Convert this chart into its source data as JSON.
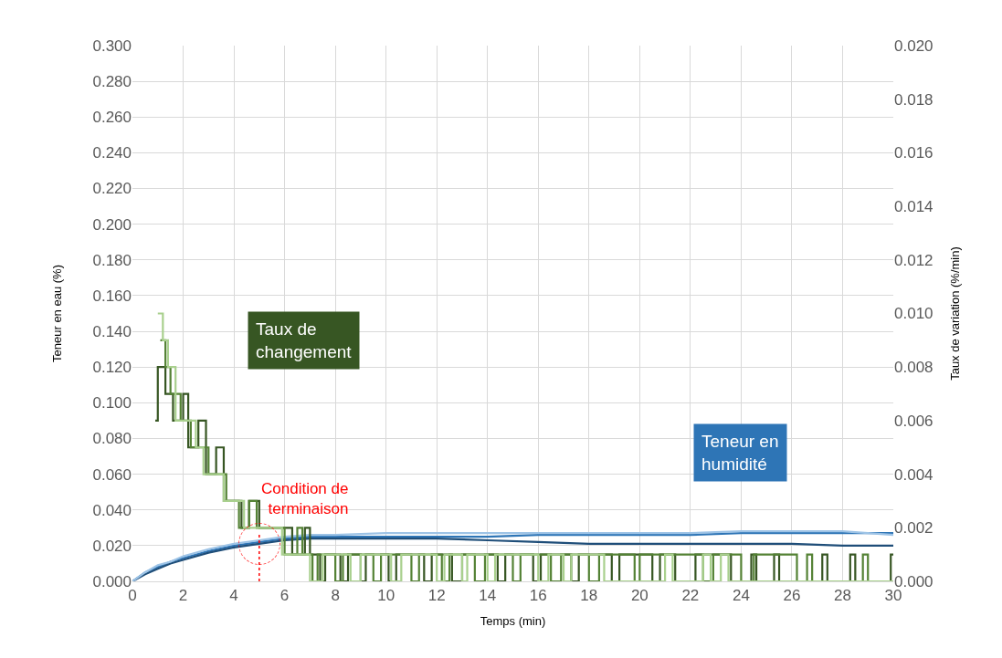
{
  "chart_data": {
    "type": "line",
    "xlabel": "Temps (min)",
    "ylabel": "Teneur en eau (%)",
    "y2label": "Taux de variation (%/min)",
    "xlim": [
      0,
      30
    ],
    "xticks": [
      0,
      2,
      4,
      6,
      8,
      10,
      12,
      14,
      16,
      18,
      20,
      22,
      24,
      26,
      28,
      30
    ],
    "ylim": [
      0,
      0.3
    ],
    "yticks": [
      {
        "value": 0,
        "label": "0.000"
      },
      {
        "value": 0.02,
        "label": "0.020"
      },
      {
        "value": 0.04,
        "label": "0.040"
      },
      {
        "value": 0.06,
        "label": "0.060"
      },
      {
        "value": 0.08,
        "label": "0.080"
      },
      {
        "value": 0.1,
        "label": "0.100"
      },
      {
        "value": 0.12,
        "label": "0.120"
      },
      {
        "value": 0.14,
        "label": "0.140"
      },
      {
        "value": 0.16,
        "label": "0.160"
      },
      {
        "value": 0.18,
        "label": "0.180"
      },
      {
        "value": 0.2,
        "label": "0.200"
      },
      {
        "value": 0.22,
        "label": "0.220"
      },
      {
        "value": 0.24,
        "label": "0.240"
      },
      {
        "value": 0.26,
        "label": "0.260"
      },
      {
        "value": 0.28,
        "label": "0.280"
      },
      {
        "value": 0.3,
        "label": "0.300"
      }
    ],
    "y2lim": [
      0,
      0.02
    ],
    "y2ticks": [
      {
        "value": 0,
        "label": "0.000"
      },
      {
        "value": 0.002,
        "label": "0.002"
      },
      {
        "value": 0.004,
        "label": "0.004"
      },
      {
        "value": 0.006,
        "label": "0.006"
      },
      {
        "value": 0.008,
        "label": "0.008"
      },
      {
        "value": 0.01,
        "label": "0.010"
      },
      {
        "value": 0.012,
        "label": "0.012"
      },
      {
        "value": 0.014,
        "label": "0.014"
      },
      {
        "value": 0.016,
        "label": "0.016"
      },
      {
        "value": 0.018,
        "label": "0.018"
      },
      {
        "value": 0.02,
        "label": "0.020"
      }
    ],
    "grid": true,
    "annotations": [
      "Taux de changement",
      "Teneur en humidité"
    ],
    "ref_lines": [
      {
        "axis": "x",
        "value": 5,
        "label": "Condition de terminaison",
        "color": "#ff0000",
        "line_style": "dotted"
      }
    ],
    "series": [
      {
        "type": "step",
        "axis": "y2",
        "color": "#375623",
        "x": [
          0.9,
          1.0,
          1.3,
          1.6,
          2.0,
          2.2,
          2.6,
          2.9,
          3.3,
          3.6,
          4.0,
          4.3,
          4.6,
          5.0,
          6.3,
          6.8,
          7.0,
          7.4,
          7.6,
          8.2,
          8.5,
          9.0,
          9.2,
          10.1,
          10.4,
          11.5,
          11.8,
          12.6,
          13.0,
          14.4,
          14.7,
          15.8,
          16.1,
          17.3,
          17.6,
          18.9,
          19.2,
          20.5,
          20.8,
          21.4,
          22.2,
          23.6,
          24.4,
          24.6,
          25.3,
          25.5,
          27.2,
          27.4,
          28.3,
          28.5,
          29.9,
          30
        ],
        "values": [
          0.006,
          0.008,
          0.007,
          0.006,
          0.007,
          0.005,
          0.006,
          0.004,
          0.005,
          0.003,
          0.003,
          0.002,
          0.003,
          0.002,
          0.001,
          0.002,
          0.001,
          0,
          0.001,
          0,
          0.001,
          0,
          0.001,
          0,
          0.001,
          0,
          0.001,
          0,
          0.001,
          0,
          0.001,
          0,
          0.001,
          0,
          0.001,
          0,
          0.001,
          0,
          0.001,
          0,
          0.001,
          0,
          0.001,
          0,
          0.001,
          0,
          0.001,
          0,
          0.001,
          0,
          0.001,
          0.001
        ]
      },
      {
        "type": "step",
        "axis": "y2",
        "color": "#548235",
        "x": [
          1.1,
          1.3,
          1.5,
          1.9,
          2.3,
          2.7,
          3.0,
          3.4,
          3.7,
          4.2,
          4.6,
          4.9,
          5.7,
          6.0,
          6.5,
          6.7,
          7.1,
          7.3,
          8.0,
          8.3,
          9.5,
          9.8,
          11.0,
          11.3,
          12.2,
          12.5,
          13.5,
          13.9,
          15.0,
          15.3,
          16.5,
          16.9,
          18.0,
          18.4,
          19.8,
          20.0,
          22.5,
          22.9,
          24.0,
          24.5,
          26.2,
          26.6,
          26.8,
          28.8,
          29.0
        ],
        "values": [
          0.009,
          0.008,
          0.007,
          0.006,
          0.005,
          0.005,
          0.004,
          0.004,
          0.003,
          0.002,
          0.003,
          0.002,
          0.002,
          0.001,
          0.002,
          0.001,
          0,
          0.001,
          0,
          0.001,
          0,
          0.001,
          0,
          0.001,
          0,
          0.001,
          0,
          0.001,
          0,
          0.001,
          0,
          0.001,
          0,
          0.001,
          0,
          0.001,
          0,
          0.001,
          0,
          0.001,
          0,
          0.001,
          0,
          0.001,
          0
        ]
      },
      {
        "type": "step",
        "axis": "y2",
        "color": "#a9d08e",
        "x": [
          1.0,
          1.2,
          1.4,
          1.7,
          2.1,
          2.5,
          2.8,
          3.2,
          3.6,
          4.0,
          4.4,
          5.2,
          5.9,
          6.8,
          7.0,
          7.5,
          8.6,
          9.0,
          10.2,
          10.6,
          12.0,
          12.3,
          13.0,
          13.2,
          14.0,
          14.3,
          16.0,
          16.4,
          17.0,
          17.3,
          18.6,
          21.0,
          21.3,
          22.5,
          22.8,
          23.2,
          23.5,
          30
        ],
        "values": [
          0.01,
          0.009,
          0.008,
          0.006,
          0.006,
          0.005,
          0.004,
          0.004,
          0.003,
          0.003,
          0.002,
          0.002,
          0.001,
          0.001,
          0,
          0.001,
          0,
          0.001,
          0,
          0.001,
          0,
          0.001,
          0,
          0.001,
          0,
          0.001,
          0,
          0.001,
          0,
          0.001,
          0,
          0.001,
          0,
          0.001,
          0,
          0.001,
          0,
          0
        ]
      },
      {
        "color": "#2e75b6",
        "x": [
          0,
          0.5,
          1,
          1.5,
          2,
          3,
          4,
          5,
          6,
          7,
          8,
          10,
          12,
          14,
          16,
          18,
          20,
          22,
          24,
          26,
          28,
          30
        ],
        "values": [
          0,
          0.005,
          0.008,
          0.011,
          0.013,
          0.017,
          0.02,
          0.022,
          0.024,
          0.025,
          0.025,
          0.025,
          0.025,
          0.025,
          0.026,
          0.026,
          0.026,
          0.026,
          0.027,
          0.027,
          0.027,
          0.027
        ]
      },
      {
        "color": "#1f4e79",
        "x": [
          0,
          0.5,
          1,
          1.5,
          2,
          3,
          4,
          5,
          6,
          7,
          8,
          10,
          12,
          14,
          16,
          18,
          20,
          22,
          24,
          26,
          28,
          30
        ],
        "values": [
          0,
          0.004,
          0.007,
          0.01,
          0.012,
          0.016,
          0.019,
          0.021,
          0.023,
          0.024,
          0.024,
          0.024,
          0.024,
          0.023,
          0.022,
          0.021,
          0.021,
          0.021,
          0.021,
          0.021,
          0.02,
          0.02
        ]
      },
      {
        "color": "#9dc3e6",
        "x": [
          0,
          0.5,
          1,
          1.5,
          2,
          3,
          4,
          5,
          6,
          7,
          8,
          10,
          12,
          14,
          16,
          18,
          20,
          22,
          24,
          26,
          28,
          30
        ],
        "values": [
          0,
          0.005,
          0.009,
          0.011,
          0.014,
          0.018,
          0.021,
          0.023,
          0.025,
          0.026,
          0.026,
          0.027,
          0.027,
          0.027,
          0.027,
          0.027,
          0.027,
          0.027,
          0.028,
          0.028,
          0.028,
          0.026
        ]
      }
    ]
  }
}
